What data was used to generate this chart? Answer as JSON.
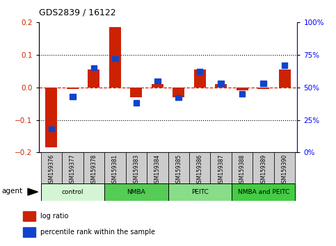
{
  "title": "GDS2839 / 16122",
  "samples": [
    "GSM159376",
    "GSM159377",
    "GSM159378",
    "GSM159381",
    "GSM159383",
    "GSM159384",
    "GSM159385",
    "GSM159386",
    "GSM159387",
    "GSM159388",
    "GSM159389",
    "GSM159390"
  ],
  "log_ratio": [
    -0.185,
    -0.005,
    0.055,
    0.185,
    -0.03,
    0.01,
    -0.03,
    0.055,
    0.01,
    -0.01,
    -0.005,
    0.055
  ],
  "percentile_rank": [
    18,
    43,
    65,
    72,
    38,
    55,
    42,
    62,
    53,
    45,
    53,
    67
  ],
  "groups": [
    {
      "label": "control",
      "start": 0,
      "end": 3,
      "color": "#d4f5d4"
    },
    {
      "label": "NMBA",
      "start": 3,
      "end": 6,
      "color": "#55cc55"
    },
    {
      "label": "PEITC",
      "start": 6,
      "end": 9,
      "color": "#88dd88"
    },
    {
      "label": "NMBA and PEITC",
      "start": 9,
      "end": 12,
      "color": "#44cc44"
    }
  ],
  "bar_color_red": "#cc2200",
  "bar_color_blue": "#1144cc",
  "ylim_left": [
    -0.2,
    0.2
  ],
  "ylim_right": [
    0,
    100
  ],
  "yticks_left": [
    -0.2,
    -0.1,
    0.0,
    0.1,
    0.2
  ],
  "yticks_right": [
    0,
    25,
    50,
    75,
    100
  ],
  "ytick_labels_right": [
    "0%",
    "25%",
    "50%",
    "75%",
    "100%"
  ],
  "dotted_lines": [
    0.1,
    -0.1
  ],
  "agent_label": "agent",
  "legend_items": [
    {
      "label": "log ratio",
      "color": "#cc2200"
    },
    {
      "label": "percentile rank within the sample",
      "color": "#1144cc"
    }
  ]
}
